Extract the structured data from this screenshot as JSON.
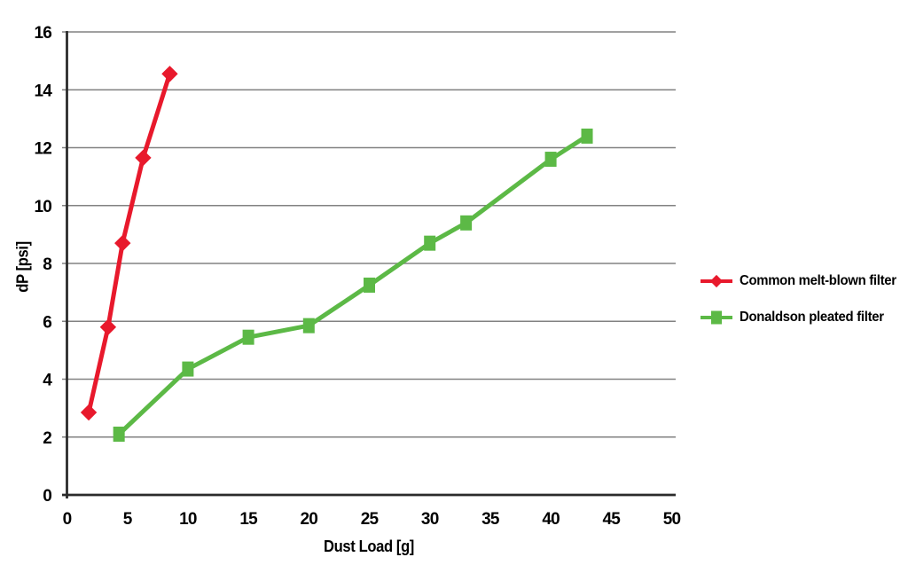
{
  "chart_data": {
    "type": "line",
    "title": "",
    "xlabel": "Dust Load [g]",
    "ylabel": "dP [psi]",
    "xlim": [
      0,
      50
    ],
    "ylim": [
      0,
      16
    ],
    "xticks": [
      0,
      5,
      10,
      15,
      20,
      25,
      30,
      35,
      40,
      45,
      50
    ],
    "yticks": [
      0,
      2,
      4,
      6,
      8,
      10,
      12,
      14,
      16
    ],
    "grid": "horizontal",
    "legend_position": "right-of-plot",
    "series": [
      {
        "name": "Common melt-blown filter",
        "color": "#e8192c",
        "marker": "diamond",
        "points": [
          [
            1.8,
            2.85
          ],
          [
            3.4,
            5.8
          ],
          [
            4.6,
            8.7
          ],
          [
            6.3,
            11.65
          ],
          [
            8.5,
            14.55
          ]
        ]
      },
      {
        "name": "Donaldson pleated filter",
        "color": "#5cb946",
        "marker": "square",
        "points": [
          [
            4.3,
            2.1
          ],
          [
            10,
            4.35
          ],
          [
            15,
            5.45
          ],
          [
            20,
            5.85
          ],
          [
            25,
            7.25
          ],
          [
            30,
            8.7
          ],
          [
            33,
            9.4
          ],
          [
            40,
            11.6
          ],
          [
            43,
            12.4
          ]
        ]
      }
    ],
    "colors": {
      "gridline": "#828282",
      "axis": "#2b2b2b",
      "text": "#000000",
      "background": "#ffffff"
    }
  }
}
